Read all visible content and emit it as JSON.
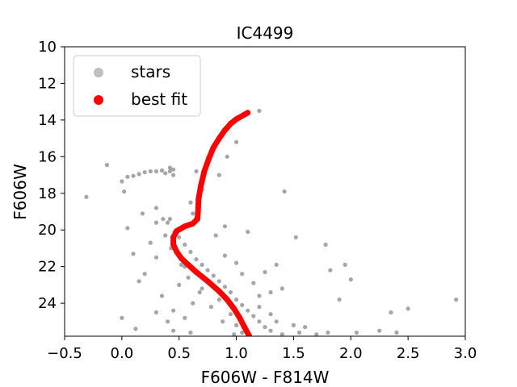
{
  "chart_data": {
    "type": "scatter",
    "title": "IC4499",
    "xlabel": "F606W - F814W",
    "ylabel": "F606W",
    "xlim": [
      -0.5,
      3.0
    ],
    "ylim": [
      25.8,
      10.0
    ],
    "y_inverted": true,
    "grid": false,
    "legend_position": "top-left",
    "x_ticks": [
      "−0.5",
      "0.0",
      "0.5",
      "1.0",
      "1.5",
      "2.0",
      "2.5",
      "3.0"
    ],
    "x_tick_values": [
      -0.5,
      0.0,
      0.5,
      1.0,
      1.5,
      2.0,
      2.5,
      3.0
    ],
    "y_ticks": [
      "10",
      "12",
      "14",
      "16",
      "18",
      "20",
      "22",
      "24"
    ],
    "y_tick_values": [
      10,
      12,
      14,
      16,
      18,
      20,
      22,
      24
    ],
    "series": [
      {
        "name": "stars",
        "color": "#808080",
        "points": [
          [
            -0.31,
            18.2
          ],
          [
            -0.13,
            16.45
          ],
          [
            0.0,
            17.35
          ],
          [
            0.02,
            17.9
          ],
          [
            0.05,
            17.1
          ],
          [
            0.1,
            17.05
          ],
          [
            0.15,
            16.95
          ],
          [
            0.2,
            16.85
          ],
          [
            0.25,
            16.8
          ],
          [
            0.3,
            16.8
          ],
          [
            0.35,
            16.75
          ],
          [
            0.38,
            16.9
          ],
          [
            0.42,
            16.8
          ],
          [
            0.45,
            17.0
          ],
          [
            0.18,
            19.1
          ],
          [
            0.3,
            18.8
          ],
          [
            0.36,
            19.4
          ],
          [
            0.4,
            19.6
          ],
          [
            0.42,
            19.4
          ],
          [
            0.46,
            20.1
          ],
          [
            0.5,
            20.4
          ],
          [
            0.55,
            20.8
          ],
          [
            0.6,
            21.2
          ],
          [
            0.65,
            21.6
          ],
          [
            0.7,
            21.9
          ],
          [
            0.75,
            22.2
          ],
          [
            0.8,
            22.5
          ],
          [
            0.85,
            22.8
          ],
          [
            0.9,
            23.1
          ],
          [
            0.95,
            23.4
          ],
          [
            1.0,
            23.8
          ],
          [
            1.05,
            24.1
          ],
          [
            1.1,
            24.4
          ],
          [
            1.15,
            24.7
          ],
          [
            1.2,
            25.0
          ],
          [
            1.25,
            25.3
          ],
          [
            1.3,
            25.5
          ],
          [
            1.4,
            25.7
          ],
          [
            0.05,
            19.9
          ],
          [
            0.1,
            21.3
          ],
          [
            0.15,
            22.8
          ],
          [
            0.0,
            24.8
          ],
          [
            0.12,
            25.4
          ],
          [
            0.25,
            20.7
          ],
          [
            0.3,
            21.5
          ],
          [
            0.2,
            22.4
          ],
          [
            0.35,
            23.6
          ],
          [
            0.3,
            24.5
          ],
          [
            0.4,
            25.0
          ],
          [
            0.45,
            25.5
          ],
          [
            0.6,
            25.6
          ],
          [
            0.55,
            24.8
          ],
          [
            0.62,
            24.0
          ],
          [
            0.7,
            23.2
          ],
          [
            0.85,
            23.8
          ],
          [
            0.95,
            24.6
          ],
          [
            1.0,
            25.2
          ],
          [
            1.05,
            25.6
          ],
          [
            1.2,
            24.2
          ],
          [
            1.3,
            24.6
          ],
          [
            1.35,
            25.0
          ],
          [
            1.5,
            25.2
          ],
          [
            1.55,
            25.6
          ],
          [
            1.6,
            25.3
          ],
          [
            1.7,
            25.7
          ],
          [
            0.9,
            21.4
          ],
          [
            1.0,
            21.8
          ],
          [
            1.05,
            22.4
          ],
          [
            1.15,
            22.9
          ],
          [
            1.2,
            23.6
          ],
          [
            1.3,
            23.4
          ],
          [
            1.1,
            20.1
          ],
          [
            1.35,
            21.9
          ],
          [
            0.82,
            20.3
          ],
          [
            0.9,
            19.8
          ],
          [
            0.6,
            18.5
          ],
          [
            0.7,
            17.8
          ],
          [
            0.85,
            17.0
          ],
          [
            0.92,
            16.0
          ],
          [
            1.0,
            15.2
          ],
          [
            1.2,
            13.5
          ],
          [
            1.42,
            17.9
          ],
          [
            1.52,
            20.4
          ],
          [
            1.78,
            20.8
          ],
          [
            1.82,
            22.2
          ],
          [
            1.95,
            21.9
          ],
          [
            2.0,
            22.7
          ],
          [
            1.9,
            23.8
          ],
          [
            2.35,
            24.5
          ],
          [
            2.5,
            24.3
          ],
          [
            2.92,
            23.8
          ],
          [
            2.25,
            25.5
          ],
          [
            2.4,
            25.6
          ],
          [
            1.8,
            25.6
          ],
          [
            2.05,
            25.6
          ],
          [
            0.42,
            16.6
          ],
          [
            0.45,
            16.7
          ],
          [
            0.65,
            16.8
          ],
          [
            0.5,
            23.0
          ],
          [
            0.55,
            22.0
          ],
          [
            0.45,
            24.4
          ],
          [
            1.4,
            23.2
          ],
          [
            1.25,
            22.3
          ],
          [
            0.62,
            19.1
          ],
          [
            0.3,
            19.6
          ],
          [
            0.38,
            20.3
          ],
          [
            0.43,
            21.0
          ],
          [
            0.52,
            21.9
          ],
          [
            0.58,
            22.6
          ],
          [
            0.68,
            23.4
          ],
          [
            0.78,
            24.2
          ],
          [
            0.88,
            25.0
          ],
          [
            0.98,
            25.7
          ]
        ]
      },
      {
        "name": "best fit",
        "color": "#ff0000",
        "points": [
          [
            1.1,
            13.6
          ],
          [
            1.0,
            13.95
          ],
          [
            0.95,
            14.2
          ],
          [
            0.9,
            14.55
          ],
          [
            0.85,
            15.0
          ],
          [
            0.8,
            15.5
          ],
          [
            0.76,
            16.1
          ],
          [
            0.72,
            16.8
          ],
          [
            0.69,
            17.6
          ],
          [
            0.67,
            18.3
          ],
          [
            0.665,
            19.0
          ],
          [
            0.66,
            19.4
          ],
          [
            0.62,
            19.65
          ],
          [
            0.55,
            19.8
          ],
          [
            0.48,
            20.05
          ],
          [
            0.45,
            20.4
          ],
          [
            0.45,
            20.8
          ],
          [
            0.48,
            21.2
          ],
          [
            0.52,
            21.55
          ],
          [
            0.58,
            21.9
          ],
          [
            0.65,
            22.3
          ],
          [
            0.75,
            22.8
          ],
          [
            0.85,
            23.35
          ],
          [
            0.92,
            23.8
          ],
          [
            0.98,
            24.3
          ],
          [
            1.03,
            24.8
          ],
          [
            1.07,
            25.3
          ],
          [
            1.11,
            25.75
          ]
        ]
      }
    ]
  }
}
